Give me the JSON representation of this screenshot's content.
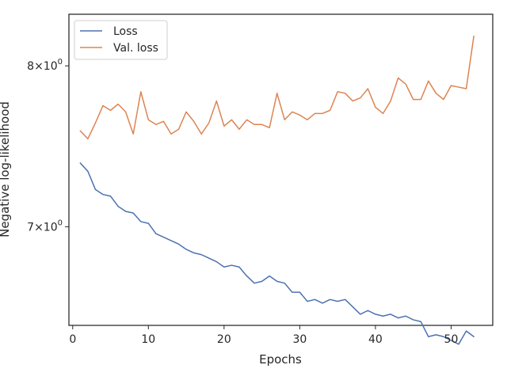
{
  "chart_data": {
    "type": "line",
    "title": "",
    "xlabel": "Epochs",
    "ylabel": "Negative log-likelihood",
    "xlim": [
      -0.5,
      55.5
    ],
    "ylim": [
      6.45,
      8.35
    ],
    "yscale": "log",
    "grid": false,
    "legend_position": "top-left",
    "x_ticks": [
      {
        "value": 0,
        "label": "0"
      },
      {
        "value": 10,
        "label": "10"
      },
      {
        "value": 20,
        "label": "20"
      },
      {
        "value": 30,
        "label": "30"
      },
      {
        "value": 40,
        "label": "40"
      },
      {
        "value": 50,
        "label": "50"
      }
    ],
    "y_ticks": [
      {
        "value": 7,
        "base": "7",
        "times": "×",
        "power_base": "10",
        "exponent": "0"
      },
      {
        "value": 8,
        "base": "8",
        "times": "×",
        "power_base": "10",
        "exponent": "0"
      }
    ],
    "x": [
      1,
      2,
      3,
      4,
      5,
      6,
      7,
      8,
      9,
      10,
      11,
      12,
      13,
      14,
      15,
      16,
      17,
      18,
      19,
      20,
      21,
      22,
      23,
      24,
      25,
      26,
      27,
      28,
      29,
      30,
      31,
      32,
      33,
      34,
      35,
      36,
      37,
      38,
      39,
      40,
      41,
      42,
      43,
      44,
      45,
      46,
      47,
      48,
      49,
      50,
      51,
      52,
      53
    ],
    "series": [
      {
        "name": "Loss",
        "color": "#4c72b0",
        "values": [
          7.38,
          7.33,
          7.22,
          7.19,
          7.18,
          7.12,
          7.09,
          7.08,
          7.03,
          7.02,
          6.96,
          6.94,
          6.92,
          6.9,
          6.87,
          6.85,
          6.84,
          6.82,
          6.8,
          6.77,
          6.78,
          6.77,
          6.72,
          6.68,
          6.69,
          6.72,
          6.69,
          6.68,
          6.63,
          6.63,
          6.58,
          6.59,
          6.57,
          6.59,
          6.58,
          6.59,
          6.55,
          6.51,
          6.53,
          6.51,
          6.5,
          6.51,
          6.49,
          6.5,
          6.48,
          6.47,
          6.39,
          6.4,
          6.39,
          6.37,
          6.35,
          6.42,
          6.39
        ]
      },
      {
        "name": "Val. loss",
        "color": "#dd8452",
        "values": [
          7.58,
          7.53,
          7.63,
          7.74,
          7.71,
          7.75,
          7.7,
          7.56,
          7.83,
          7.65,
          7.62,
          7.64,
          7.56,
          7.59,
          7.7,
          7.64,
          7.56,
          7.63,
          7.77,
          7.61,
          7.65,
          7.59,
          7.65,
          7.62,
          7.62,
          7.6,
          7.82,
          7.65,
          7.7,
          7.68,
          7.65,
          7.69,
          7.69,
          7.71,
          7.83,
          7.82,
          7.77,
          7.79,
          7.85,
          7.73,
          7.69,
          7.77,
          7.92,
          7.88,
          7.78,
          7.78,
          7.9,
          7.82,
          7.78,
          7.87,
          7.86,
          7.85,
          8.2
        ]
      }
    ]
  }
}
